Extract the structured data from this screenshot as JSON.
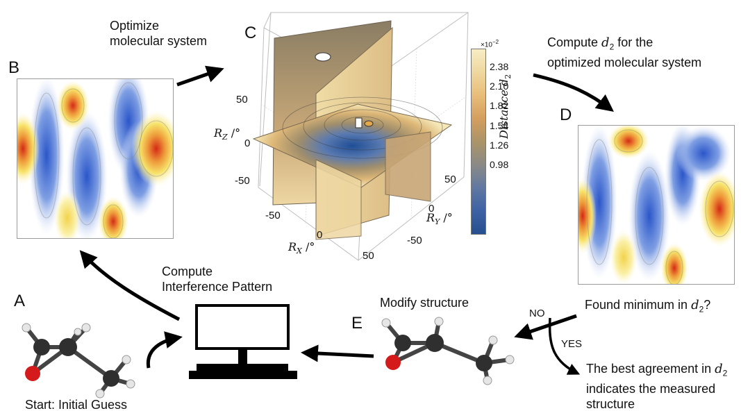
{
  "panels": {
    "a": "A",
    "b": "B",
    "c": "C",
    "d": "D",
    "e": "E"
  },
  "captions": {
    "optimize": [
      "Optimize",
      "molecular system"
    ],
    "compute_d2": [
      "Compute ",
      "d",
      "2",
      " for the",
      "optimized molecular system"
    ],
    "compute_pattern": [
      "Compute",
      "Interference Pattern"
    ],
    "modify": "Modify structure",
    "found_min": [
      "Found minimum in ",
      "d",
      "2",
      "?"
    ],
    "no": "NO",
    "yes": "YES",
    "best": [
      "The best agreement in ",
      "d",
      "2",
      "indicates the measured",
      "structure"
    ],
    "start": "Start: Initial Guess"
  },
  "plot3d": {
    "z_axis_label": [
      "R",
      "Z",
      " /°"
    ],
    "x_axis_label": [
      "R",
      "X",
      " /°"
    ],
    "y_axis_label": [
      "R",
      "Y",
      " /°"
    ],
    "z_ticks": [
      "50",
      "0",
      "-50"
    ],
    "x_ticks": [
      "-50",
      "0",
      "50"
    ],
    "y_ticks": [
      "50",
      "0",
      "-50"
    ]
  },
  "colorbar": {
    "exponent": "×10",
    "exponent_power": "−2",
    "ticks": [
      "2.38",
      "2.10",
      "1.82",
      "1.54",
      "1.26",
      "0.98"
    ],
    "label": [
      "Distance ",
      "d",
      "2"
    ],
    "colors": [
      "#f7edc4",
      "#efd79f",
      "#e8bd79",
      "#d49e5e",
      "#ab9468",
      "#8b8a86",
      "#6078a2",
      "#3d62a4",
      "#264f8f"
    ]
  },
  "pattern_colors": {
    "blue": "#3f6fd0",
    "red": "#d8361f",
    "yellow": "#f6e46e",
    "white": "#ffffff"
  },
  "molecule_colors": {
    "carbon": "#2a2a2a",
    "oxygen": "#cc1616",
    "hydrogen": "#e8e8e8"
  }
}
